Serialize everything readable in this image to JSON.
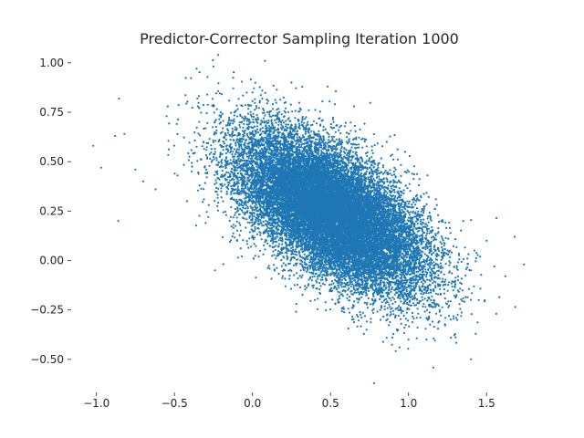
{
  "chart_data": {
    "type": "scatter",
    "title": "Predictor-Corrector Sampling Iteration 1000",
    "xlabel": "",
    "ylabel": "",
    "x_ticks": [
      "−1.0",
      "−0.5",
      "0.0",
      "0.5",
      "1.0",
      "1.5"
    ],
    "y_ticks": [
      "1.00",
      "0.75",
      "0.50",
      "0.25",
      "0.00",
      "−0.25",
      "−0.50"
    ],
    "x_tick_values": [
      -1.0,
      -0.5,
      0.0,
      0.5,
      1.0,
      1.5
    ],
    "y_tick_values": [
      1.0,
      0.75,
      0.5,
      0.25,
      0.0,
      -0.25,
      -0.5
    ],
    "xlim": [
      -1.15,
      1.75
    ],
    "ylim": [
      -0.63,
      1.05
    ],
    "grid": false,
    "color": "#1f77b4",
    "distribution": {
      "mean": [
        0.5,
        0.25
      ],
      "std": [
        0.3,
        0.2
      ],
      "correlation": -0.6,
      "count": 20000
    },
    "points": [
      [
        -1.02,
        0.58
      ],
      [
        -0.97,
        0.47
      ],
      [
        -0.88,
        0.63
      ],
      [
        -0.86,
        0.2
      ],
      [
        -0.82,
        0.64
      ],
      [
        -0.75,
        0.46
      ],
      [
        -0.7,
        0.4
      ],
      [
        -0.62,
        0.36
      ],
      [
        -0.55,
        0.73
      ],
      [
        -0.48,
        0.43
      ],
      [
        -0.42,
        0.3
      ],
      [
        -0.35,
        0.78
      ],
      [
        -0.3,
        0.19
      ],
      [
        -0.24,
        -0.05
      ],
      [
        -0.22,
        1.04
      ],
      [
        -0.18,
        0.62
      ],
      [
        -0.12,
        0.34
      ],
      [
        -0.06,
        0.55
      ],
      [
        0.0,
        0.85
      ],
      [
        0.04,
        0.22
      ],
      [
        0.08,
        1.01
      ],
      [
        0.1,
        0.6
      ],
      [
        0.15,
        0.01
      ],
      [
        0.2,
        0.45
      ],
      [
        0.25,
        0.9
      ],
      [
        0.3,
        0.12
      ],
      [
        0.35,
        0.58
      ],
      [
        0.4,
        -0.2
      ],
      [
        0.45,
        0.71
      ],
      [
        0.5,
        0.3
      ],
      [
        0.55,
        -0.1
      ],
      [
        0.6,
        0.48
      ],
      [
        0.65,
        0.78
      ],
      [
        0.7,
        0.05
      ],
      [
        0.75,
        0.38
      ],
      [
        0.78,
        -0.62
      ],
      [
        0.82,
        -0.3
      ],
      [
        0.86,
        0.6
      ],
      [
        0.9,
        0.1
      ],
      [
        0.95,
        0.28
      ],
      [
        1.0,
        -0.4
      ],
      [
        1.05,
        0.3
      ],
      [
        1.1,
        -0.1
      ],
      [
        1.15,
        0.15
      ],
      [
        1.2,
        -0.25
      ],
      [
        1.25,
        0.05
      ],
      [
        1.3,
        -0.12
      ],
      [
        1.35,
        0.2
      ],
      [
        1.4,
        -0.05
      ],
      [
        1.45,
        -0.2
      ],
      [
        1.5,
        0.1
      ],
      [
        1.55,
        -0.03
      ],
      [
        1.62,
        -0.08
      ],
      [
        1.68,
        0.12
      ],
      [
        1.74,
        -0.02
      ]
    ]
  }
}
